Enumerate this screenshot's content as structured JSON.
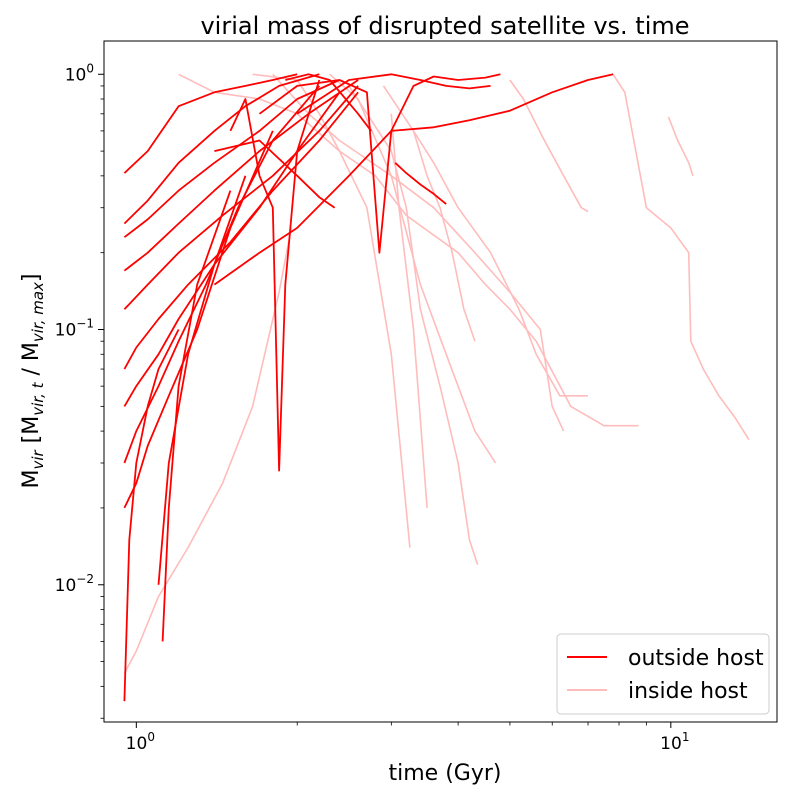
{
  "chart_data": {
    "type": "line",
    "title": "virial mass of disrupted satellite vs. time",
    "xlabel": "time (Gyr)",
    "ylabel": "M_vir [M_vir,t / M_vir,max]",
    "ylabel_parts": {
      "main": "M",
      "main_sub": "vir",
      "open": " [M",
      "t_sub": "vir, t",
      "slash": " / M",
      "max_sub": "vir, max",
      "close": "]"
    },
    "xscale": "log",
    "yscale": "log",
    "xlim": [
      0.87,
      15.8
    ],
    "ylim": [
      0.0029,
      1.35
    ],
    "x_ticks": [
      {
        "value": 1,
        "label": "10",
        "exp": "0"
      },
      {
        "value": 10,
        "label": "10",
        "exp": "1"
      }
    ],
    "y_ticks": [
      {
        "value": 0.01,
        "label": "10",
        "exp": "−2"
      },
      {
        "value": 0.1,
        "label": "10",
        "exp": "−1"
      },
      {
        "value": 1,
        "label": "10",
        "exp": "0"
      }
    ],
    "colors": {
      "outside": "#ff0000",
      "inside": "#ffbcbc"
    },
    "legend": {
      "position": "lower-right",
      "entries": [
        {
          "label": "outside host",
          "style": "outside"
        },
        {
          "label": "inside host",
          "style": "inside"
        }
      ]
    },
    "series": [
      {
        "style": "inside",
        "x": [
          1.65,
          2.0,
          2.2,
          2.4,
          2.8,
          3.2,
          4.0,
          4.5,
          5.0,
          5.6,
          6.5,
          7.5,
          8.7
        ],
        "y": [
          1.0,
          0.95,
          0.7,
          0.5,
          0.4,
          0.28,
          0.2,
          0.15,
          0.12,
          0.09,
          0.05,
          0.042,
          0.042
        ]
      },
      {
        "style": "inside",
        "x": [
          1.8,
          2.1,
          2.4,
          3.0,
          3.6,
          4.3,
          5.0,
          5.7,
          6.0,
          6.3
        ],
        "y": [
          1.0,
          0.7,
          0.55,
          0.4,
          0.3,
          0.2,
          0.14,
          0.1,
          0.05,
          0.04
        ]
      },
      {
        "style": "inside",
        "x": [
          2.3,
          2.6,
          3.0,
          3.4,
          3.8,
          4.3,
          4.7
        ],
        "y": [
          1.0,
          0.8,
          0.4,
          0.15,
          0.08,
          0.04,
          0.03
        ]
      },
      {
        "style": "inside",
        "x": [
          2.5,
          3.0,
          3.2,
          3.4,
          3.7,
          4.0,
          4.2,
          4.35
        ],
        "y": [
          0.9,
          0.5,
          0.3,
          0.12,
          0.06,
          0.03,
          0.015,
          0.012
        ]
      },
      {
        "style": "inside",
        "x": [
          2.9,
          3.3,
          3.6,
          4.0,
          4.6,
          5.2,
          5.6,
          6.2,
          7.0
        ],
        "y": [
          0.9,
          0.6,
          0.45,
          0.3,
          0.2,
          0.12,
          0.08,
          0.055,
          0.055
        ]
      },
      {
        "style": "inside",
        "x": [
          3.3,
          3.5,
          3.7,
          3.9,
          4.1,
          4.3
        ],
        "y": [
          0.6,
          0.4,
          0.3,
          0.2,
          0.12,
          0.09
        ]
      },
      {
        "style": "inside",
        "x": [
          3.0,
          3.1,
          3.3,
          3.5
        ],
        "y": [
          0.7,
          0.3,
          0.1,
          0.02
        ]
      },
      {
        "style": "inside",
        "x": [
          1.2,
          1.4,
          1.7,
          2.0,
          2.4,
          2.7,
          3.0,
          3.25
        ],
        "y": [
          1.0,
          0.85,
          0.8,
          0.7,
          0.5,
          0.3,
          0.08,
          0.014
        ]
      },
      {
        "style": "inside",
        "x": [
          5.0,
          5.3,
          5.8,
          6.3,
          6.8,
          7.0
        ],
        "y": [
          0.95,
          0.8,
          0.55,
          0.4,
          0.3,
          0.29
        ]
      },
      {
        "style": "inside",
        "x": [
          7.8,
          8.2,
          9.0,
          10.0,
          10.8,
          10.9,
          11.5,
          12.3,
          13.2,
          14.0
        ],
        "y": [
          1.0,
          0.85,
          0.3,
          0.25,
          0.2,
          0.09,
          0.07,
          0.055,
          0.045,
          0.037
        ]
      },
      {
        "style": "inside",
        "x": [
          9.9,
          10.3,
          10.8,
          11.0
        ],
        "y": [
          0.68,
          0.55,
          0.45,
          0.4
        ]
      },
      {
        "style": "inside",
        "x": [
          0.95,
          1.0,
          1.1,
          1.25,
          1.45,
          1.65,
          1.85,
          1.95
        ],
        "y": [
          0.0045,
          0.0055,
          0.009,
          0.014,
          0.025,
          0.05,
          0.14,
          0.25
        ]
      },
      {
        "style": "outside",
        "x": [
          0.95,
          1.05,
          1.2,
          1.4,
          1.6,
          1.8,
          2.0
        ],
        "y": [
          0.41,
          0.5,
          0.75,
          0.85,
          0.9,
          0.95,
          1.0
        ]
      },
      {
        "style": "outside",
        "x": [
          0.95,
          1.05,
          1.2,
          1.4,
          1.6,
          1.85,
          2.2
        ],
        "y": [
          0.26,
          0.32,
          0.45,
          0.6,
          0.75,
          0.9,
          1.0
        ]
      },
      {
        "style": "outside",
        "x": [
          0.95,
          1.05,
          1.2,
          1.4,
          1.7,
          2.0,
          2.4
        ],
        "y": [
          0.23,
          0.27,
          0.35,
          0.45,
          0.6,
          0.8,
          0.95
        ]
      },
      {
        "style": "outside",
        "x": [
          0.95,
          1.05,
          1.2,
          1.4,
          1.7,
          2.1,
          2.6
        ],
        "y": [
          0.17,
          0.2,
          0.26,
          0.35,
          0.5,
          0.7,
          0.95
        ]
      },
      {
        "style": "outside",
        "x": [
          0.95,
          1.05,
          1.2,
          1.45,
          1.8,
          2.2,
          2.6
        ],
        "y": [
          0.12,
          0.15,
          0.2,
          0.28,
          0.4,
          0.6,
          0.9
        ]
      },
      {
        "style": "outside",
        "x": [
          0.95,
          1.0,
          1.1,
          1.25,
          1.5,
          1.8,
          2.2,
          2.6
        ],
        "y": [
          0.07,
          0.085,
          0.11,
          0.15,
          0.22,
          0.35,
          0.55,
          0.85
        ]
      },
      {
        "style": "outside",
        "x": [
          0.95,
          1.0,
          1.1,
          1.2,
          1.4,
          1.7,
          2.0,
          2.4
        ],
        "y": [
          0.05,
          0.06,
          0.08,
          0.11,
          0.18,
          0.3,
          0.5,
          0.85
        ]
      },
      {
        "style": "outside",
        "x": [
          0.95,
          1.0,
          1.1,
          1.2,
          1.35,
          1.55,
          1.8,
          2.2
        ],
        "y": [
          0.03,
          0.04,
          0.06,
          0.09,
          0.15,
          0.3,
          0.55,
          0.9
        ]
      },
      {
        "style": "outside",
        "x": [
          0.95,
          1.0,
          1.05,
          1.15,
          1.3,
          1.5,
          1.8
        ],
        "y": [
          0.02,
          0.025,
          0.035,
          0.055,
          0.1,
          0.25,
          0.6
        ]
      },
      {
        "style": "outside",
        "x": [
          0.95,
          0.97,
          1.0,
          1.05,
          1.1,
          1.2
        ],
        "y": [
          0.0035,
          0.015,
          0.03,
          0.05,
          0.07,
          0.1
        ]
      },
      {
        "style": "outside",
        "x": [
          1.12,
          1.15,
          1.2,
          1.3,
          1.5
        ],
        "y": [
          0.006,
          0.02,
          0.06,
          0.15,
          0.35
        ]
      },
      {
        "style": "outside",
        "x": [
          1.1,
          1.15,
          1.25,
          1.4,
          1.6
        ],
        "y": [
          0.01,
          0.03,
          0.08,
          0.18,
          0.4
        ]
      },
      {
        "style": "outside",
        "x": [
          1.5,
          1.6,
          1.7,
          1.8,
          1.85,
          1.9,
          2.0,
          2.2
        ],
        "y": [
          0.6,
          0.8,
          0.4,
          0.3,
          0.028,
          0.15,
          0.5,
          0.95
        ]
      },
      {
        "style": "outside",
        "x": [
          1.7,
          2.0,
          2.4,
          2.7,
          2.85,
          3.0,
          3.3,
          3.6,
          4.0,
          4.5,
          4.8
        ],
        "y": [
          0.7,
          0.9,
          0.95,
          0.85,
          0.2,
          0.6,
          0.9,
          0.98,
          0.95,
          0.97,
          1.0
        ]
      },
      {
        "style": "outside",
        "x": [
          1.4,
          1.7,
          2.0,
          2.5,
          3.0,
          3.6,
          4.2,
          5.0,
          6.0,
          7.0,
          7.8
        ],
        "y": [
          0.15,
          0.2,
          0.25,
          0.4,
          0.6,
          0.62,
          0.66,
          0.72,
          0.85,
          0.95,
          1.0
        ]
      },
      {
        "style": "outside",
        "x": [
          2.0,
          2.5,
          3.0,
          3.4,
          3.8,
          4.2,
          4.6
        ],
        "y": [
          0.7,
          0.95,
          1.0,
          0.95,
          0.9,
          0.88,
          0.9
        ]
      },
      {
        "style": "outside",
        "x": [
          3.05,
          3.2,
          3.4,
          3.6,
          3.8
        ],
        "y": [
          0.45,
          0.41,
          0.37,
          0.34,
          0.31
        ]
      },
      {
        "style": "outside",
        "x": [
          1.9,
          2.1,
          2.3,
          2.6,
          2.75
        ],
        "y": [
          0.95,
          1.0,
          0.95,
          0.7,
          0.6
        ]
      },
      {
        "style": "outside",
        "x": [
          1.4,
          1.7,
          2.0,
          2.2,
          2.35
        ],
        "y": [
          0.5,
          0.55,
          0.4,
          0.33,
          0.3
        ]
      }
    ]
  }
}
